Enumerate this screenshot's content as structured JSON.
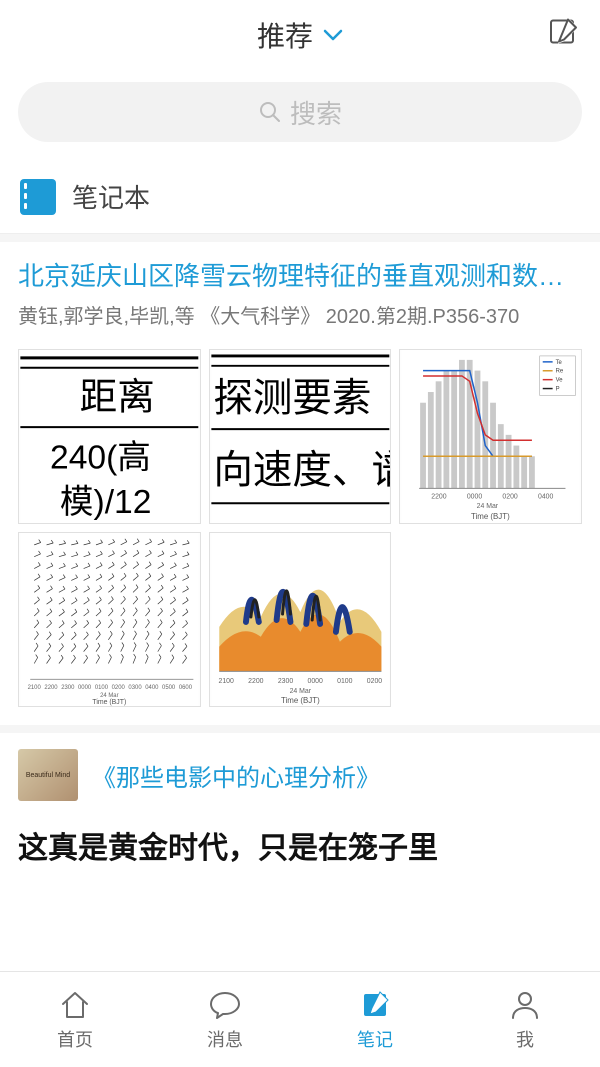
{
  "header": {
    "title": "推荐"
  },
  "search": {
    "placeholder": "搜索"
  },
  "notebook": {
    "label": "笔记本"
  },
  "article": {
    "title": "北京延庆山区降雪云物理特征的垂直观测和数值模拟...",
    "meta": "黄钰,郭学良,毕凯,等 《大气科学》 2020.第2期.P356-370",
    "thumbs": {
      "t1": {
        "lines": [
          "距离",
          "240(高",
          "模)/12"
        ]
      },
      "t2": {
        "lines": [
          "探测要素",
          "向速度、谱"
        ]
      },
      "t3": {
        "type": "bar-line",
        "bar_color": "#c9c9c9",
        "lines": [
          {
            "color": "#1e62c9",
            "label": "Te"
          },
          {
            "color": "#d89a2b",
            "label": "Re"
          },
          {
            "color": "#d22f2f",
            "label": "Ve"
          },
          {
            "color": "#222222",
            "label": "P"
          }
        ],
        "bars": [
          8,
          9,
          10,
          11,
          11,
          12,
          12,
          11,
          10,
          8,
          6,
          5,
          4,
          3,
          3
        ],
        "line_blue": [
          11,
          11,
          11,
          11,
          11,
          11,
          11,
          8,
          4,
          3,
          3,
          3,
          3,
          3,
          3
        ],
        "line_red": [
          10.5,
          10.5,
          10.5,
          10.5,
          10.5,
          10.5,
          10,
          7,
          5,
          4.5,
          4.5,
          4.5,
          4.5,
          4.5,
          4.5
        ],
        "line_orange": [
          3,
          3,
          3,
          3,
          3,
          3,
          3,
          3,
          3,
          3,
          3,
          3,
          3,
          3,
          3
        ],
        "xlabels": [
          "2200",
          "0000",
          "0200",
          "0400"
        ],
        "xlabel": "Time (BJT)",
        "ymax": 12
      },
      "t4": {
        "type": "wind-profile",
        "xlabels": [
          "2100",
          "2200",
          "2300",
          "0000",
          "0100",
          "0200",
          "0300",
          "0400",
          "0500",
          "0600"
        ],
        "xlabel": "Time (BJT)"
      },
      "t5": {
        "type": "filled-contour",
        "colors": {
          "top": "#1f3b8a",
          "mid": "#e88b2d",
          "low": "#e8c97a",
          "dark": "#222"
        },
        "xlabels": [
          "2100",
          "2200",
          "2300",
          "0000",
          "0100",
          "0200"
        ],
        "xlabel": "Time (BJT)"
      }
    }
  },
  "book": {
    "cover_text": "Beautiful Mind",
    "title": "《那些电影中的心理分析》",
    "headline": "这真是黄金时代，只是在笼子里"
  },
  "nav": {
    "items": [
      {
        "key": "home",
        "label": "首页"
      },
      {
        "key": "msg",
        "label": "消息"
      },
      {
        "key": "notes",
        "label": "笔记"
      },
      {
        "key": "me",
        "label": "我"
      }
    ],
    "active": "notes"
  },
  "colors": {
    "accent": "#1e9bd6",
    "text": "#333333",
    "muted": "#777777"
  }
}
